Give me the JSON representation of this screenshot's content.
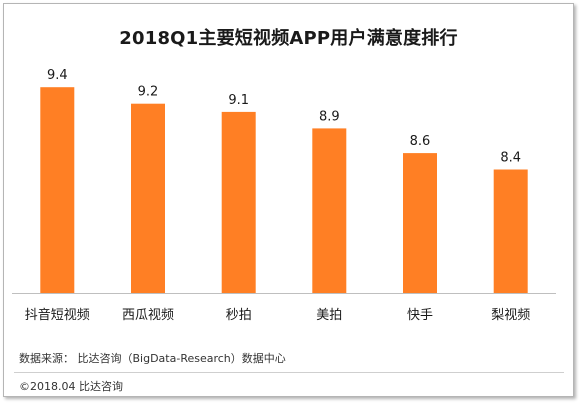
{
  "title": "2018Q1主要短视频APP用户满意度排行",
  "source": "数据来源： 比达咨询（BigData-Research）数据中心",
  "copyright": "©2018.04   比达咨询",
  "colors": {
    "bar": "#ff7f24",
    "axis": "#bfbfbf",
    "text": "#1a1a1a"
  },
  "chart_data": {
    "type": "bar",
    "title": "2018Q1主要短视频APP用户满意度排行",
    "categories": [
      "抖音短视频",
      "西瓜视频",
      "秒拍",
      "美拍",
      "快手",
      "梨视频"
    ],
    "values": [
      9.4,
      9.2,
      9.1,
      8.9,
      8.6,
      8.4
    ],
    "value_labels": [
      "9.4",
      "9.2",
      "9.1",
      "8.9",
      "8.6",
      "8.4"
    ],
    "xlabel": "",
    "ylabel": "",
    "ylim": [
      6.9,
      9.5
    ],
    "grid": false,
    "legend": "none"
  }
}
